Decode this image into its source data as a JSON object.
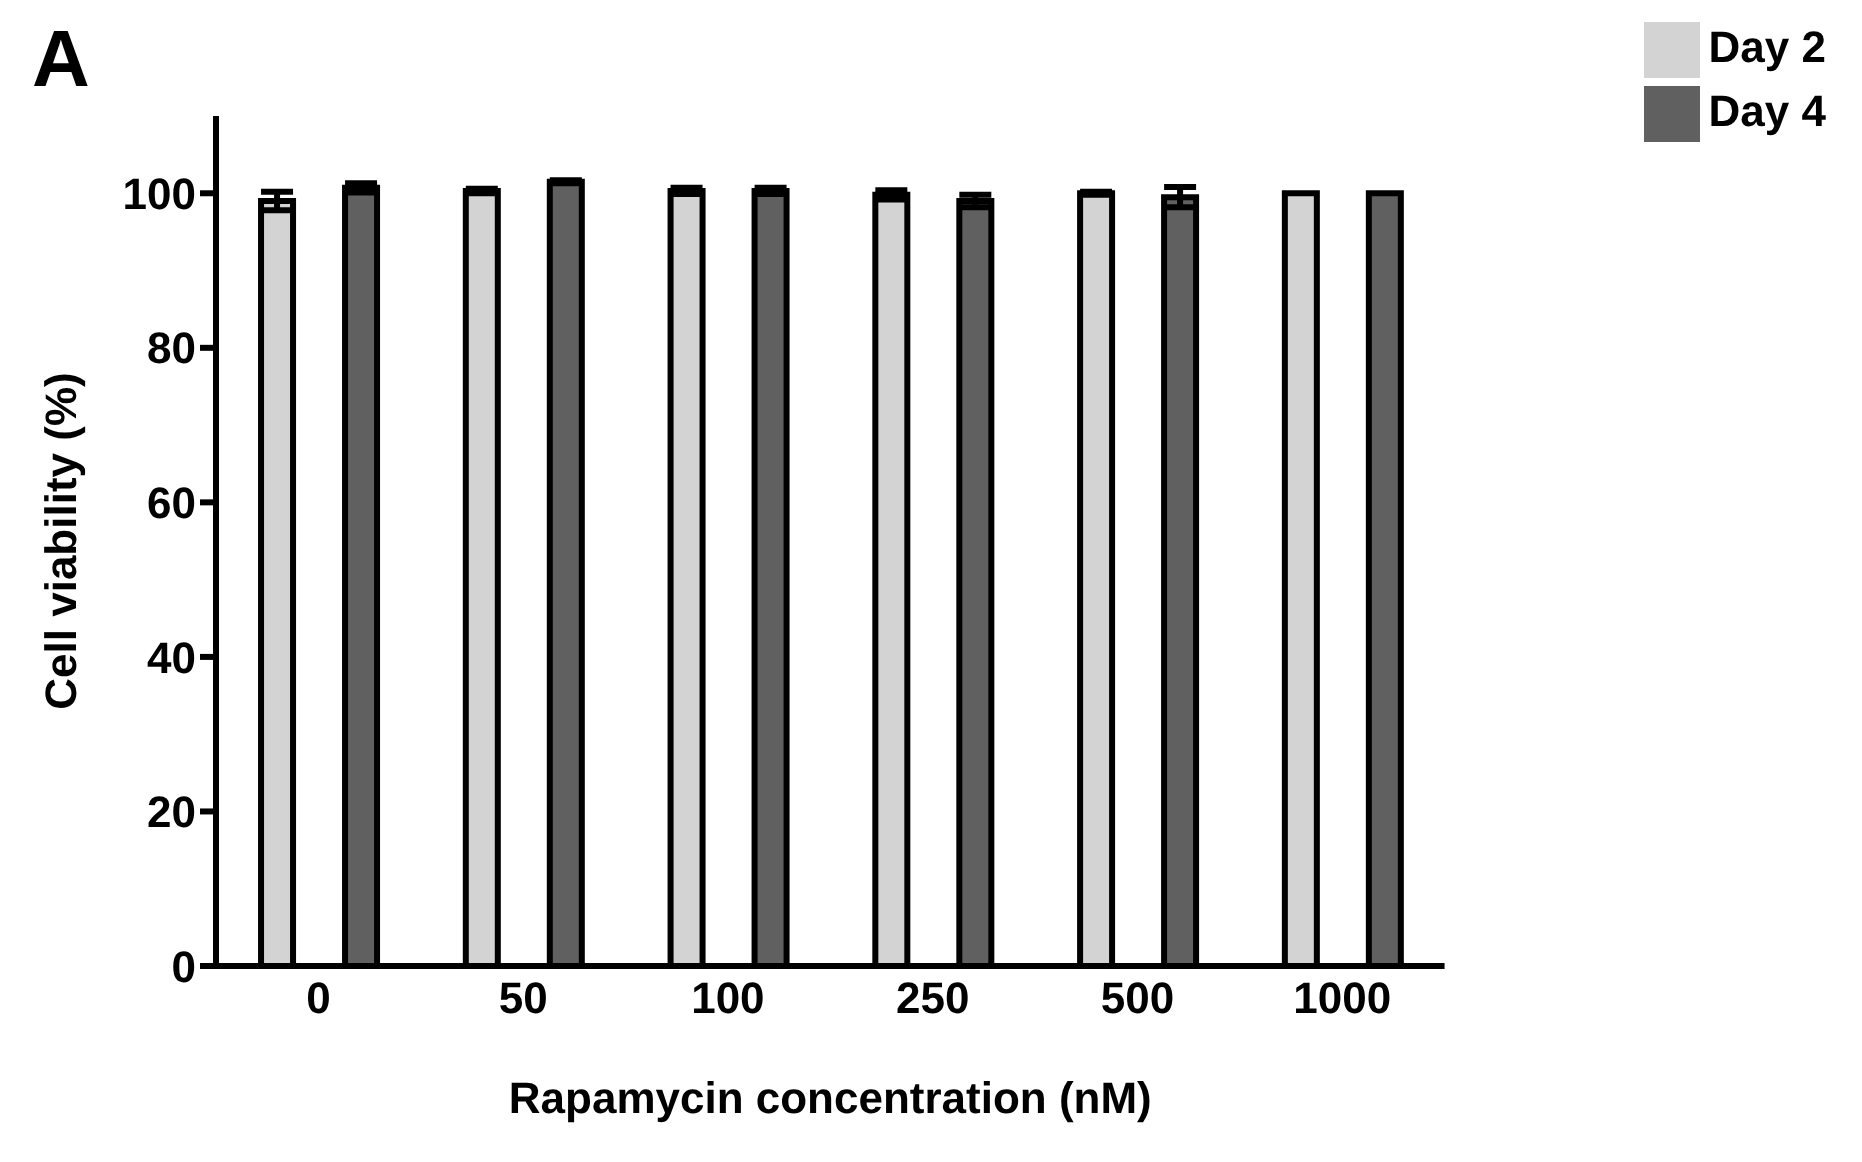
{
  "chart_data": {
    "type": "bar",
    "title": "A",
    "xlabel": "Rapamycin concentration (nM)",
    "ylabel": "Cell viability (%)",
    "categories": [
      "0",
      "50",
      "100",
      "250",
      "500",
      "1000"
    ],
    "series": [
      {
        "name": "Day 2",
        "color": "#d3d3d3",
        "values": [
          99,
          100.3,
          100.3,
          99.8,
          100,
          100
        ],
        "errors": [
          1.2,
          0.3,
          0.4,
          0.6,
          0.2,
          0
        ]
      },
      {
        "name": "Day 4",
        "color": "#606060",
        "values": [
          100.7,
          101.5,
          100.3,
          99,
          99.5,
          100
        ],
        "errors": [
          0.6,
          0.2,
          0.4,
          0.8,
          1.3,
          0
        ]
      }
    ],
    "ylim": [
      0,
      110
    ],
    "yticks": [
      0,
      20,
      40,
      60,
      80,
      100
    ],
    "grid": false,
    "legend": "top right"
  }
}
